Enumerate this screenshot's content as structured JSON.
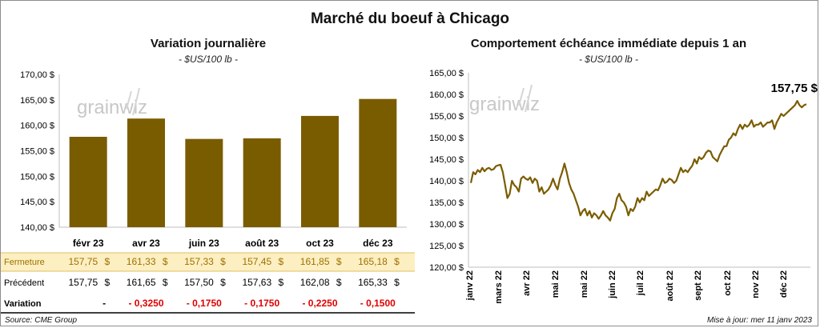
{
  "title": "Marché du boeuf à Chicago",
  "left_panel": {
    "title": "Variation  journalière",
    "unit": "- $US/100 lb -"
  },
  "right_panel": {
    "title": "Comportement  échéance immédiate depuis 1 an",
    "unit": "- $US/100 lb -",
    "last_value_label": "157,75 $"
  },
  "colors": {
    "bar": "#7a5c00",
    "line": "#7a5c00",
    "highlight_row": "#fcefc2",
    "negative": "#e00000",
    "axis": "#bfbfbf"
  },
  "watermark": "grainwiz",
  "table": {
    "rows": [
      {
        "label": "Fermeture",
        "values": [
          "157,75",
          "161,33",
          "157,33",
          "157,45",
          "161,85",
          "165,18"
        ],
        "currency": "$",
        "highlight": true
      },
      {
        "label": "Précédent",
        "values": [
          "157,75",
          "161,65",
          "157,50",
          "157,63",
          "162,08",
          "165,33"
        ],
        "currency": "$",
        "highlight": false
      },
      {
        "label": "Variation",
        "values": [
          "-",
          "- 0,3250",
          "- 0,1750",
          "- 0,1750",
          "- 0,2250",
          "- 0,1500"
        ],
        "currency": "",
        "highlight": false
      }
    ]
  },
  "footer": {
    "source": "Source: CME Group",
    "updated": "Mise à jour: mer 11 janv 2023"
  },
  "chart_data": [
    {
      "type": "bar",
      "categories": [
        "févr 23",
        "avr 23",
        "juin 23",
        "août 23",
        "oct 23",
        "déc 23"
      ],
      "values": [
        157.75,
        161.33,
        157.33,
        157.45,
        161.85,
        165.18
      ],
      "ylim": [
        140,
        170
      ],
      "yticks": [
        140,
        145,
        150,
        155,
        160,
        165,
        170
      ],
      "ytick_labels": [
        "140,00 $",
        "145,00 $",
        "150,00 $",
        "155,00 $",
        "160,00 $",
        "165,00 $",
        "170,00 $"
      ],
      "grid": false
    },
    {
      "type": "line",
      "x_tick_labels": [
        "janv 22",
        "mars 22",
        "avr 22",
        "mai 22",
        "mai 22",
        "juin 22",
        "juil 22",
        "août 22",
        "sept 22",
        "oct 22",
        "nov 22",
        "déc 22"
      ],
      "ylim": [
        120,
        165
      ],
      "yticks": [
        120,
        125,
        130,
        135,
        140,
        145,
        150,
        155,
        160,
        165
      ],
      "ytick_labels": [
        "120,00 $",
        "125,00 $",
        "130,00 $",
        "135,00 $",
        "140,00 $",
        "145,00 $",
        "150,00 $",
        "155,00 $",
        "160,00 $",
        "165,00 $"
      ],
      "values": [
        139.5,
        142.0,
        141.5,
        142.5,
        142.0,
        143.0,
        142.2,
        142.8,
        143.0,
        142.5,
        142.7,
        143.4,
        143.6,
        143.7,
        142.0,
        139.0,
        136.0,
        137.0,
        140.0,
        139.0,
        138.5,
        137.5,
        140.5,
        141.0,
        140.5,
        140.2,
        140.8,
        139.5,
        140.5,
        140.0,
        137.5,
        138.5,
        137.0,
        137.5,
        138.0,
        139.0,
        140.5,
        139.0,
        138.0,
        140.5,
        142.0,
        144.0,
        142.0,
        139.5,
        138.0,
        137.0,
        135.5,
        134.0,
        132.0,
        133.0,
        133.5,
        132.0,
        133.0,
        131.5,
        132.5,
        132.0,
        131.2,
        132.0,
        133.0,
        132.0,
        131.5,
        130.8,
        132.5,
        133.5,
        136.0,
        137.0,
        135.5,
        135.0,
        134.0,
        132.0,
        133.5,
        133.0,
        134.0,
        136.0,
        135.0,
        136.0,
        135.5,
        137.5,
        136.5,
        137.0,
        137.5,
        138.0,
        137.8,
        139.0,
        140.5,
        139.5,
        139.8,
        140.5,
        140.2,
        139.5,
        140.0,
        141.5,
        143.0,
        142.0,
        142.5,
        142.0,
        142.8,
        143.5,
        145.0,
        144.0,
        145.5,
        145.0,
        145.5,
        146.5,
        147.0,
        146.8,
        145.5,
        145.0,
        144.5,
        146.0,
        147.0,
        148.0,
        148.0,
        149.5,
        150.0,
        151.0,
        150.5,
        152.0,
        153.0,
        152.0,
        153.0,
        152.5,
        153.0,
        154.0,
        152.5,
        153.0,
        153.0,
        153.5,
        152.5,
        153.0,
        153.5,
        153.5,
        154.0,
        152.0,
        153.5,
        154.5,
        155.5,
        155.0,
        155.5,
        156.0,
        156.5,
        157.0,
        157.5,
        158.5,
        157.5,
        157.0,
        157.5,
        157.75
      ],
      "last_value": 157.75,
      "grid": false
    }
  ]
}
